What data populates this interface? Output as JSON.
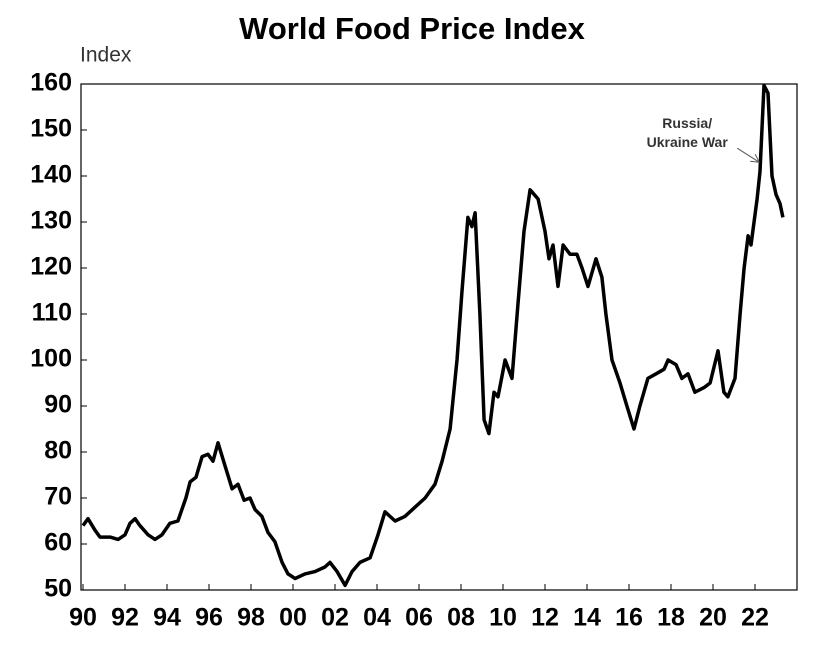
{
  "chart_data": {
    "type": "line",
    "title": "World Food Price Index",
    "y_label": "Index",
    "color": "#000000",
    "annotation": {
      "lines": [
        "Russia/",
        "Ukraine War"
      ],
      "x": 2022.2,
      "y": 143
    },
    "xlim": [
      1990,
      2024
    ],
    "ylim": [
      50,
      160
    ],
    "yticks": [
      50,
      60,
      70,
      80,
      90,
      100,
      110,
      120,
      130,
      140,
      150,
      160
    ],
    "xticks": [
      {
        "value": 1990,
        "label": "90"
      },
      {
        "value": 1992,
        "label": "92"
      },
      {
        "value": 1994,
        "label": "94"
      },
      {
        "value": 1996,
        "label": "96"
      },
      {
        "value": 1998,
        "label": "98"
      },
      {
        "value": 2000,
        "label": "00"
      },
      {
        "value": 2002,
        "label": "02"
      },
      {
        "value": 2004,
        "label": "04"
      },
      {
        "value": 2006,
        "label": "06"
      },
      {
        "value": 2008,
        "label": "08"
      },
      {
        "value": 2010,
        "label": "10"
      },
      {
        "value": 2012,
        "label": "12"
      },
      {
        "value": 2014,
        "label": "14"
      },
      {
        "value": 2016,
        "label": "16"
      },
      {
        "value": 2018,
        "label": "18"
      },
      {
        "value": 2020,
        "label": "20"
      },
      {
        "value": 2022,
        "label": "22"
      }
    ],
    "x": [
      1990.0,
      1990.24,
      1990.57,
      1990.81,
      1991.29,
      1991.67,
      1992.0,
      1992.24,
      1992.48,
      1992.71,
      1993.1,
      1993.43,
      1993.76,
      1994.14,
      1994.52,
      1994.9,
      1995.1,
      1995.38,
      1995.67,
      1995.95,
      1996.19,
      1996.43,
      1996.76,
      1997.1,
      1997.38,
      1997.67,
      1997.95,
      1998.19,
      1998.52,
      1998.81,
      1999.14,
      1999.48,
      1999.76,
      2000.1,
      2000.57,
      2001.05,
      2001.52,
      2001.76,
      2002.1,
      2002.48,
      2002.81,
      2003.19,
      2003.67,
      2004.05,
      2004.38,
      2004.86,
      2005.33,
      2005.81,
      2006.29,
      2006.76,
      2007.1,
      2007.48,
      2007.81,
      2008.05,
      2008.33,
      2008.52,
      2008.67,
      2008.9,
      2009.1,
      2009.33,
      2009.57,
      2009.76,
      2010.1,
      2010.43,
      2010.71,
      2011.0,
      2011.29,
      2011.67,
      2012.0,
      2012.19,
      2012.38,
      2012.62,
      2012.86,
      2013.19,
      2013.52,
      2013.76,
      2014.05,
      2014.43,
      2014.71,
      2014.9,
      2015.19,
      2015.57,
      2015.9,
      2016.24,
      2016.52,
      2016.9,
      2017.29,
      2017.67,
      2017.86,
      2018.24,
      2018.52,
      2018.81,
      2019.14,
      2019.57,
      2019.86,
      2020.24,
      2020.52,
      2020.71,
      2021.05,
      2021.29,
      2021.48,
      2021.67,
      2021.81,
      2022.1,
      2022.24,
      2022.43,
      2022.62,
      2022.81,
      2023.0,
      2023.19,
      2023.33
    ],
    "values": [
      64,
      65.5,
      63,
      61.5,
      61.5,
      61,
      62,
      64.5,
      65.5,
      64,
      62,
      61,
      62,
      64.5,
      65,
      70,
      73.5,
      74.5,
      79,
      79.5,
      78,
      82,
      77,
      72,
      73,
      69.5,
      70,
      67.5,
      66,
      62.5,
      60.5,
      56,
      53.5,
      52.5,
      53.5,
      54,
      55,
      56,
      54,
      51,
      54,
      56,
      57,
      62,
      67,
      65,
      66,
      68,
      70,
      73,
      78,
      85,
      100,
      115,
      131,
      129,
      132,
      110,
      87,
      84,
      93,
      92,
      100,
      96,
      112,
      128,
      137,
      135,
      128,
      122,
      125,
      116,
      125,
      123,
      123,
      120,
      116,
      122,
      118,
      110,
      100,
      95,
      90,
      85,
      90,
      96,
      97,
      98,
      100,
      99,
      96,
      97,
      93,
      94,
      95,
      102,
      93,
      92,
      96,
      110,
      120,
      127,
      125,
      135,
      141,
      159.7,
      158,
      140,
      136,
      134,
      131
    ]
  }
}
